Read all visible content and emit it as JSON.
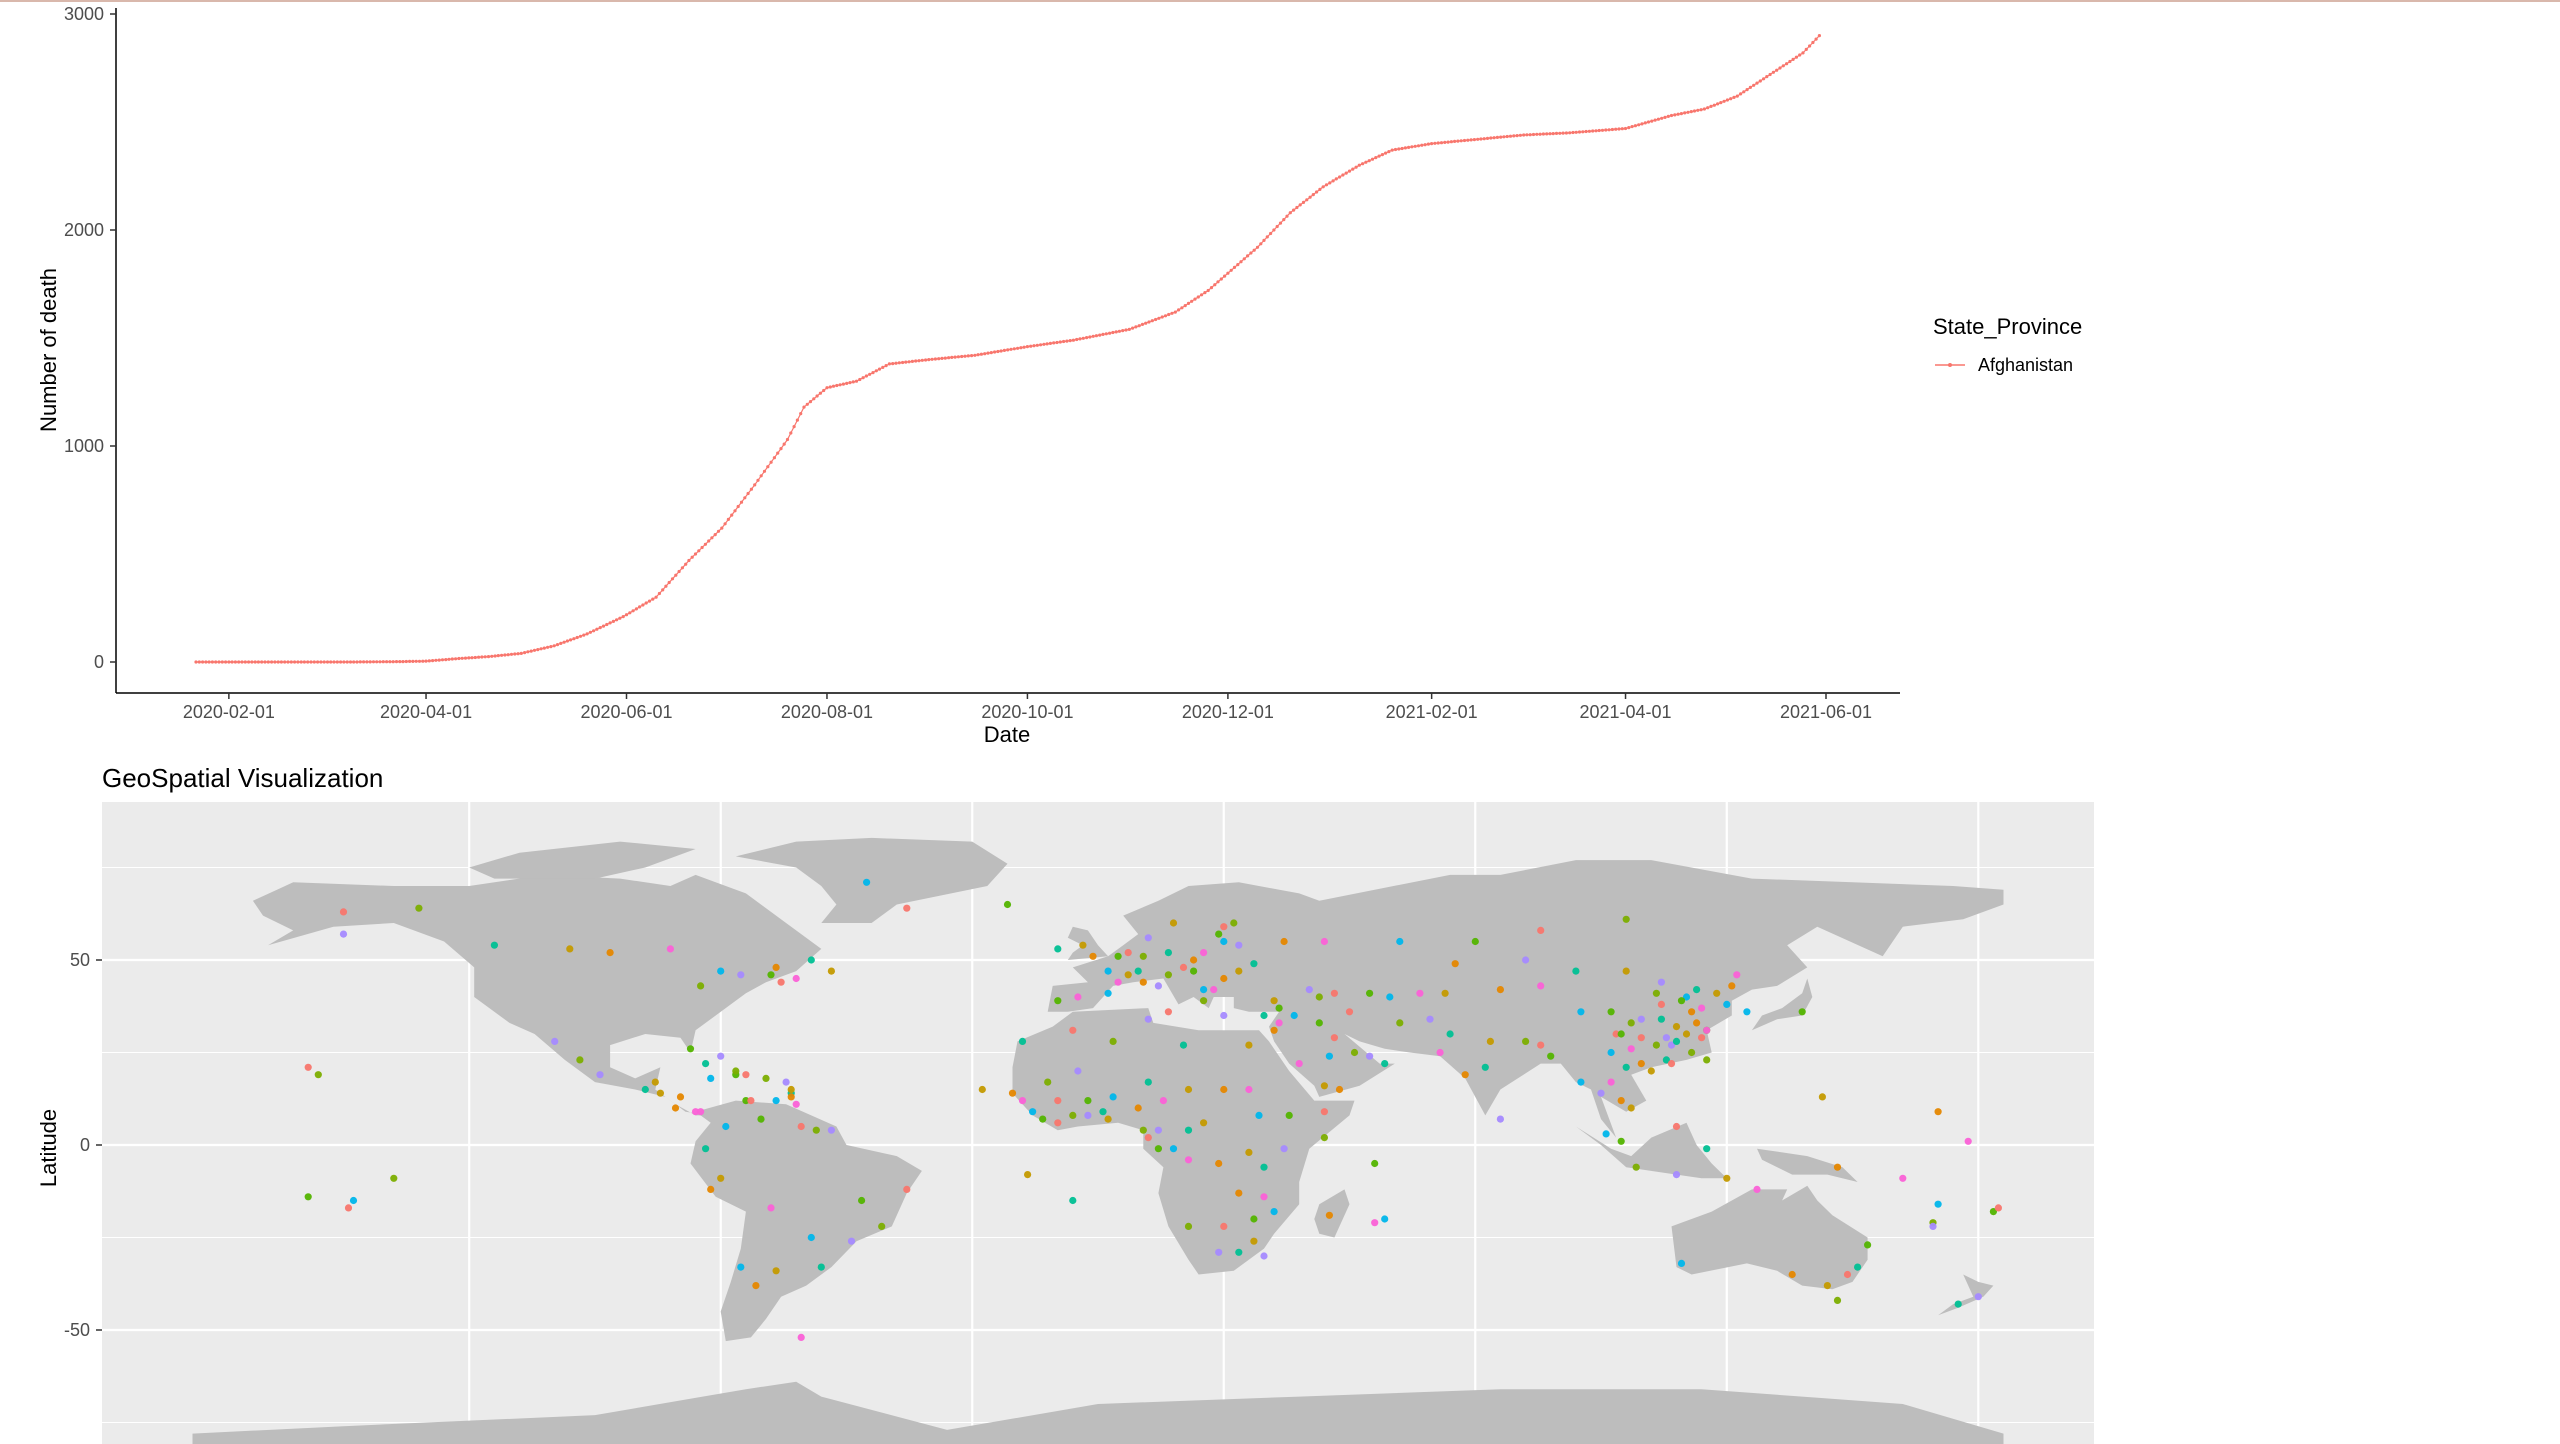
{
  "chart_data": [
    {
      "type": "line",
      "title": "",
      "xlabel": "Date",
      "ylabel": "Number of death",
      "x_tick_labels": [
        "2020-02-01",
        "2020-04-01",
        "2020-06-01",
        "2020-08-01",
        "2020-10-01",
        "2020-12-01",
        "2021-02-01",
        "2021-04-01",
        "2021-06-01"
      ],
      "y_tick_labels": [
        "0",
        "1000",
        "2000",
        "3000"
      ],
      "ylim": [
        0,
        3000
      ],
      "xlim": [
        "2020-01-22",
        "2021-06-01"
      ],
      "grid": false,
      "legend_title": "State_Province",
      "legend_position": "right",
      "series": [
        {
          "name": "Afghanistan",
          "color": "#f8766d",
          "points": [
            [
              "2020-01-22",
              0
            ],
            [
              "2020-02-15",
              0
            ],
            [
              "2020-03-10",
              0
            ],
            [
              "2020-03-25",
              2
            ],
            [
              "2020-04-01",
              4
            ],
            [
              "2020-04-10",
              15
            ],
            [
              "2020-04-20",
              25
            ],
            [
              "2020-04-30",
              40
            ],
            [
              "2020-05-10",
              75
            ],
            [
              "2020-05-20",
              130
            ],
            [
              "2020-05-31",
              210
            ],
            [
              "2020-06-10",
              300
            ],
            [
              "2020-06-20",
              470
            ],
            [
              "2020-06-30",
              620
            ],
            [
              "2020-07-10",
              820
            ],
            [
              "2020-07-20",
              1030
            ],
            [
              "2020-07-25",
              1180
            ],
            [
              "2020-08-01",
              1270
            ],
            [
              "2020-08-10",
              1300
            ],
            [
              "2020-08-20",
              1380
            ],
            [
              "2020-09-01",
              1400
            ],
            [
              "2020-09-15",
              1420
            ],
            [
              "2020-10-01",
              1460
            ],
            [
              "2020-10-15",
              1490
            ],
            [
              "2020-11-01",
              1540
            ],
            [
              "2020-11-15",
              1620
            ],
            [
              "2020-11-25",
              1720
            ],
            [
              "2020-12-01",
              1800
            ],
            [
              "2020-12-10",
              1920
            ],
            [
              "2020-12-20",
              2080
            ],
            [
              "2020-12-30",
              2200
            ],
            [
              "2021-01-10",
              2300
            ],
            [
              "2021-01-20",
              2370
            ],
            [
              "2021-02-01",
              2400
            ],
            [
              "2021-02-15",
              2420
            ],
            [
              "2021-03-01",
              2440
            ],
            [
              "2021-03-15",
              2450
            ],
            [
              "2021-04-01",
              2470
            ],
            [
              "2021-04-15",
              2530
            ],
            [
              "2021-04-25",
              2560
            ],
            [
              "2021-05-05",
              2620
            ],
            [
              "2021-05-15",
              2720
            ],
            [
              "2021-05-25",
              2820
            ],
            [
              "2021-05-30",
              2900
            ]
          ]
        }
      ]
    },
    {
      "type": "scatter",
      "title": "GeoSpatial Visualization",
      "xlabel": "",
      "ylabel": "Latitude",
      "y_tick_labels": [
        "50",
        "0",
        "-50"
      ],
      "grid": true,
      "background": "#ebebeb",
      "land_color": "#bdbdbd",
      "point_colors": [
        "#f8766d",
        "#c49a00",
        "#53b400",
        "#00c094",
        "#00b6eb",
        "#a58aff",
        "#fb61d7",
        "#7cae00",
        "#e58700"
      ],
      "points": [
        [
          -150,
          63
        ],
        [
          -135,
          64
        ],
        [
          -150,
          57
        ],
        [
          -120,
          54
        ],
        [
          -105,
          53
        ],
        [
          -97,
          52
        ],
        [
          -85,
          53
        ],
        [
          -75,
          47
        ],
        [
          -65,
          46
        ],
        [
          -63,
          44
        ],
        [
          -79,
          43
        ],
        [
          -71,
          46
        ],
        [
          -57,
          50
        ],
        [
          -53,
          47
        ],
        [
          -64,
          48
        ],
        [
          -60,
          45
        ],
        [
          -46,
          71
        ],
        [
          -18,
          65
        ],
        [
          -38,
          64
        ],
        [
          -103,
          23
        ],
        [
          -99,
          19
        ],
        [
          -90,
          15
        ],
        [
          -87,
          14
        ],
        [
          -84,
          10
        ],
        [
          -80,
          9
        ],
        [
          -77,
          18
        ],
        [
          -72,
          19
        ],
        [
          -70,
          19
        ],
        [
          -66,
          18
        ],
        [
          -62,
          17
        ],
        [
          -61,
          14
        ],
        [
          -61,
          15
        ],
        [
          -61,
          13
        ],
        [
          -60,
          11
        ],
        [
          -64,
          12
        ],
        [
          -70,
          12
        ],
        [
          -69,
          12
        ],
        [
          -72,
          20
        ],
        [
          -75,
          24
        ],
        [
          -78,
          22
        ],
        [
          -88,
          17
        ],
        [
          -83,
          13
        ],
        [
          -79,
          9
        ],
        [
          -74,
          5
        ],
        [
          -67,
          7
        ],
        [
          -59,
          5
        ],
        [
          -56,
          4
        ],
        [
          -53,
          4
        ],
        [
          -78,
          -1
        ],
        [
          -75,
          -9
        ],
        [
          -77,
          -12
        ],
        [
          -65,
          -17
        ],
        [
          -57,
          -25
        ],
        [
          -47,
          -15
        ],
        [
          -38,
          -12
        ],
        [
          -43,
          -22
        ],
        [
          -49,
          -26
        ],
        [
          -55,
          -33
        ],
        [
          -64,
          -34
        ],
        [
          -68,
          -38
        ],
        [
          -59,
          -52
        ],
        [
          -71,
          -33
        ],
        [
          -157,
          -14
        ],
        [
          -149,
          -17
        ],
        [
          -140,
          -9
        ],
        [
          -108,
          28
        ],
        [
          -15,
          28
        ],
        [
          -23,
          15
        ],
        [
          -17,
          14
        ],
        [
          -15,
          12
        ],
        [
          -13,
          9
        ],
        [
          -11,
          7
        ],
        [
          -8,
          6
        ],
        [
          -5,
          8
        ],
        [
          -2,
          8
        ],
        [
          1,
          9
        ],
        [
          2,
          7
        ],
        [
          8,
          10
        ],
        [
          13,
          12
        ],
        [
          3,
          13
        ],
        [
          -2,
          12
        ],
        [
          -8,
          12
        ],
        [
          -10,
          17
        ],
        [
          -4,
          20
        ],
        [
          10,
          17
        ],
        [
          18,
          15
        ],
        [
          25,
          15
        ],
        [
          30,
          15
        ],
        [
          32,
          8
        ],
        [
          38,
          8
        ],
        [
          45,
          9
        ],
        [
          45,
          2
        ],
        [
          37,
          -1
        ],
        [
          33,
          -6
        ],
        [
          30,
          -2
        ],
        [
          24,
          -5
        ],
        [
          18,
          -4
        ],
        [
          15,
          -1
        ],
        [
          12,
          -1
        ],
        [
          10,
          2
        ],
        [
          9,
          4
        ],
        [
          12,
          4
        ],
        [
          18,
          4
        ],
        [
          21,
          6
        ],
        [
          28,
          -13
        ],
        [
          33,
          -14
        ],
        [
          35,
          -18
        ],
        [
          31,
          -20
        ],
        [
          25,
          -22
        ],
        [
          18,
          -22
        ],
        [
          24,
          -29
        ],
        [
          28,
          -29
        ],
        [
          31,
          -26
        ],
        [
          46,
          -19
        ],
        [
          55,
          -21
        ],
        [
          57,
          -20
        ],
        [
          55,
          -5
        ],
        [
          -5,
          31
        ],
        [
          3,
          28
        ],
        [
          10,
          34
        ],
        [
          17,
          27
        ],
        [
          30,
          27
        ],
        [
          35,
          31
        ],
        [
          36,
          33
        ],
        [
          39,
          35
        ],
        [
          44,
          33
        ],
        [
          47,
          29
        ],
        [
          51,
          25
        ],
        [
          54,
          24
        ],
        [
          57,
          22
        ],
        [
          45,
          16
        ],
        [
          48,
          15
        ],
        [
          40,
          22
        ],
        [
          46,
          24
        ],
        [
          36,
          37
        ],
        [
          50,
          36
        ],
        [
          60,
          33
        ],
        [
          66,
          34
        ],
        [
          70,
          30
        ],
        [
          69,
          41
        ],
        [
          71,
          49
        ],
        [
          64,
          41
        ],
        [
          58,
          40
        ],
        [
          54,
          41
        ],
        [
          47,
          41
        ],
        [
          44,
          40
        ],
        [
          42,
          42
        ],
        [
          -8,
          53
        ],
        [
          -3,
          54
        ],
        [
          -1,
          51
        ],
        [
          -4,
          40
        ],
        [
          2,
          47
        ],
        [
          4,
          51
        ],
        [
          6,
          52
        ],
        [
          9,
          51
        ],
        [
          10,
          56
        ],
        [
          14,
          52
        ],
        [
          15,
          60
        ],
        [
          19,
          50
        ],
        [
          21,
          52
        ],
        [
          25,
          55
        ],
        [
          24,
          57
        ],
        [
          25,
          59
        ],
        [
          27,
          60
        ],
        [
          28,
          54
        ],
        [
          31,
          49
        ],
        [
          28,
          47
        ],
        [
          25,
          45
        ],
        [
          23,
          42
        ],
        [
          21,
          42
        ],
        [
          19,
          47
        ],
        [
          17,
          48
        ],
        [
          14,
          46
        ],
        [
          12,
          43
        ],
        [
          8,
          47
        ],
        [
          6,
          46
        ],
        [
          9,
          44
        ],
        [
          4,
          44
        ],
        [
          2,
          41
        ],
        [
          -8,
          39
        ],
        [
          14,
          36
        ],
        [
          21,
          39
        ],
        [
          25,
          35
        ],
        [
          33,
          35
        ],
        [
          35,
          39
        ],
        [
          37,
          55
        ],
        [
          45,
          55
        ],
        [
          60,
          55
        ],
        [
          75,
          55
        ],
        [
          88,
          58
        ],
        [
          105,
          61
        ],
        [
          85,
          50
        ],
        [
          95,
          47
        ],
        [
          105,
          47
        ],
        [
          80,
          42
        ],
        [
          88,
          43
        ],
        [
          96,
          36
        ],
        [
          102,
          36
        ],
        [
          103,
          30
        ],
        [
          106,
          33
        ],
        [
          108,
          34
        ],
        [
          112,
          34
        ],
        [
          115,
          32
        ],
        [
          118,
          36
        ],
        [
          120,
          37
        ],
        [
          117,
          40
        ],
        [
          116,
          39
        ],
        [
          112,
          38
        ],
        [
          111,
          41
        ],
        [
          112,
          44
        ],
        [
          119,
          42
        ],
        [
          123,
          41
        ],
        [
          126,
          43
        ],
        [
          127,
          46
        ],
        [
          125,
          38
        ],
        [
          121,
          31
        ],
        [
          120,
          29
        ],
        [
          118,
          25
        ],
        [
          114,
          27
        ],
        [
          113,
          23
        ],
        [
          110,
          20
        ],
        [
          108,
          22
        ],
        [
          106,
          26
        ],
        [
          102,
          25
        ],
        [
          104,
          30
        ],
        [
          108,
          29
        ],
        [
          111,
          27
        ],
        [
          113,
          29
        ],
        [
          115,
          28
        ],
        [
          117,
          30
        ],
        [
          119,
          33
        ],
        [
          121,
          31
        ],
        [
          129,
          36
        ],
        [
          140,
          36
        ],
        [
          114,
          22
        ],
        [
          121,
          23
        ],
        [
          100,
          14
        ],
        [
          105,
          21
        ],
        [
          106,
          10
        ],
        [
          104,
          12
        ],
        [
          102,
          17
        ],
        [
          96,
          17
        ],
        [
          90,
          24
        ],
        [
          88,
          27
        ],
        [
          85,
          28
        ],
        [
          80,
          7
        ],
        [
          77,
          21
        ],
        [
          78,
          28
        ],
        [
          73,
          19
        ],
        [
          68,
          25
        ],
        [
          101,
          3
        ],
        [
          104,
          1
        ],
        [
          115,
          5
        ],
        [
          107,
          -6
        ],
        [
          115,
          -8
        ],
        [
          121,
          -1
        ],
        [
          125,
          -9
        ],
        [
          147,
          -6
        ],
        [
          160,
          -9
        ],
        [
          167,
          -16
        ],
        [
          178,
          -18
        ],
        [
          179,
          -17
        ],
        [
          166,
          -21
        ],
        [
          166,
          -22
        ],
        [
          151,
          -33
        ],
        [
          145,
          -38
        ],
        [
          138,
          -35
        ],
        [
          131,
          -12
        ],
        [
          116,
          -32
        ],
        [
          153,
          -27
        ],
        [
          149,
          -35
        ],
        [
          147,
          -42
        ],
        [
          175,
          -41
        ],
        [
          171,
          -43
        ],
        [
          144,
          13
        ],
        [
          167,
          9
        ],
        [
          173,
          1
        ],
        [
          -148,
          -15
        ],
        [
          -81,
          26
        ],
        [
          -157,
          21
        ],
        [
          -155,
          19
        ],
        [
          33,
          -30
        ],
        [
          -5,
          -15
        ],
        [
          -14,
          -8
        ]
      ]
    }
  ],
  "legend": {
    "title": "State_Province",
    "items": [
      "Afghanistan"
    ]
  }
}
